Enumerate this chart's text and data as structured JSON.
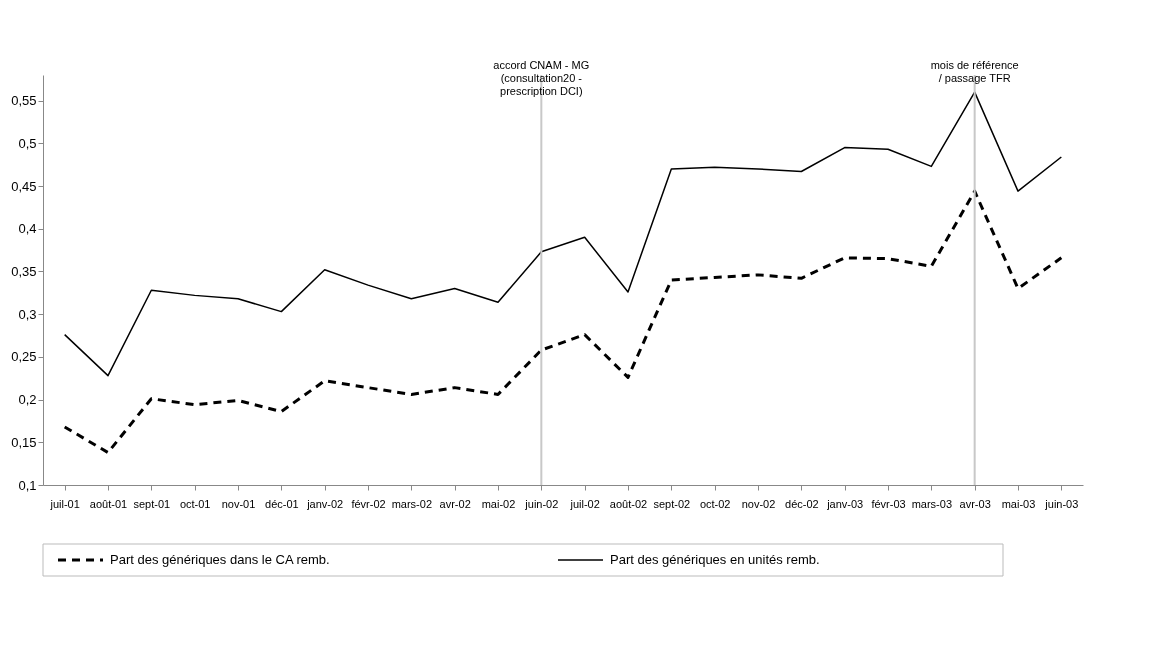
{
  "chart_data": {
    "type": "line",
    "categories": [
      "juil-01",
      "août-01",
      "sept-01",
      "oct-01",
      "nov-01",
      "déc-01",
      "janv-02",
      "févr-02",
      "mars-02",
      "avr-02",
      "mai-02",
      "juin-02",
      "juil-02",
      "août-02",
      "sept-02",
      "oct-02",
      "nov-02",
      "déc-02",
      "janv-03",
      "févr-03",
      "mars-03",
      "avr-03",
      "mai-03",
      "juin-03"
    ],
    "series": [
      {
        "name": "Part des génériques dans le CA remb.",
        "color": "#000000",
        "line_style": "dashed",
        "values": [
          0.168,
          0.138,
          0.201,
          0.194,
          0.199,
          0.186,
          0.222,
          0.214,
          0.206,
          0.214,
          0.206,
          0.258,
          0.276,
          0.226,
          0.34,
          0.343,
          0.346,
          0.342,
          0.366,
          0.365,
          0.356,
          0.444,
          0.33,
          0.366
        ]
      },
      {
        "name": "Part des génériques en unités remb.",
        "color": "#000000",
        "line_style": "solid",
        "values": [
          0.276,
          0.228,
          0.328,
          0.322,
          0.318,
          0.303,
          0.352,
          0.334,
          0.318,
          0.33,
          0.314,
          0.373,
          0.39,
          0.326,
          0.47,
          0.472,
          0.47,
          0.467,
          0.495,
          0.493,
          0.473,
          0.56,
          0.444,
          0.484
        ]
      }
    ],
    "ylim": [
      0.1,
      0.58
    ],
    "yticks": [
      {
        "value": 0.1,
        "label": "0,1"
      },
      {
        "value": 0.15,
        "label": "0,15"
      },
      {
        "value": 0.2,
        "label": "0,2"
      },
      {
        "value": 0.25,
        "label": "0,25"
      },
      {
        "value": 0.3,
        "label": "0,3"
      },
      {
        "value": 0.35,
        "label": "0,35"
      },
      {
        "value": 0.4,
        "label": "0,4"
      },
      {
        "value": 0.45,
        "label": "0,45"
      },
      {
        "value": 0.5,
        "label": "0,5"
      },
      {
        "value": 0.55,
        "label": "0,55"
      }
    ],
    "ref_lines": [
      {
        "axis": "x",
        "value": "juin-02",
        "label": "accord CNAM - MG\n(consultation20 -\nprescription DCI)",
        "color": "#c8c8c8"
      },
      {
        "axis": "x",
        "value": "avr-03",
        "label": "mois de référence\n/ passage TFR",
        "color": "#c8c8c8"
      }
    ],
    "grid": false,
    "legend": "bottom",
    "marker": "none"
  }
}
